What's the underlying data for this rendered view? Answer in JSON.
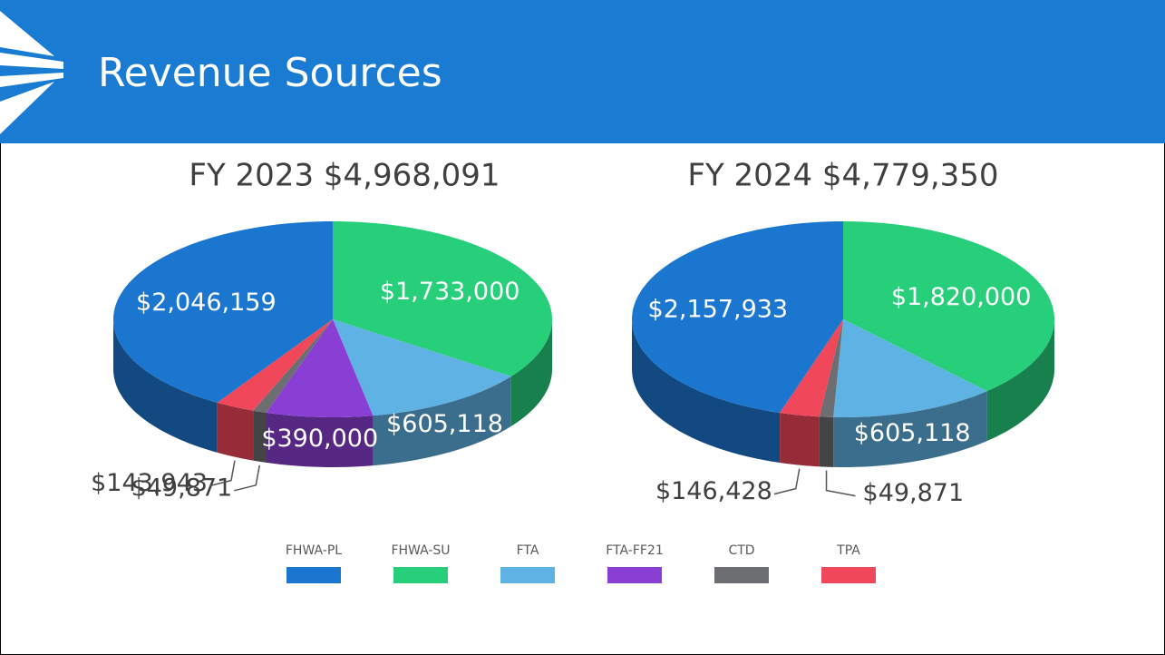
{
  "title": "Revenue Sources",
  "chart_data": [
    {
      "type": "pie",
      "title": "FY 2023 $4,968,091",
      "categories": [
        "FHWA-PL",
        "FHWA-SU",
        "FTA",
        "FTA-FF21",
        "CTD",
        "TPA"
      ],
      "values": [
        2046159,
        1733000,
        605118,
        390000,
        49871,
        143943
      ],
      "value_labels": [
        "$2,046,159",
        "$1,733,000",
        "$605,118",
        "$390,000",
        "$49,871",
        "$143,943"
      ],
      "colors": [
        "#1b76cf",
        "#27cf7a",
        "#5fb2e4",
        "#8a3fd4",
        "#6d6e71",
        "#f0475a"
      ]
    },
    {
      "type": "pie",
      "title": "FY 2024 $4,779,350",
      "categories": [
        "FHWA-PL",
        "FHWA-SU",
        "FTA",
        "CTD",
        "TPA"
      ],
      "values": [
        2157933,
        1820000,
        605118,
        49871,
        146428
      ],
      "value_labels": [
        "$2,157,933",
        "$1,820,000",
        "$605,118",
        "$49,871",
        "$146,428"
      ],
      "colors": [
        "#1b76cf",
        "#27cf7a",
        "#5fb2e4",
        "#6d6e71",
        "#f0475a"
      ]
    }
  ]
}
